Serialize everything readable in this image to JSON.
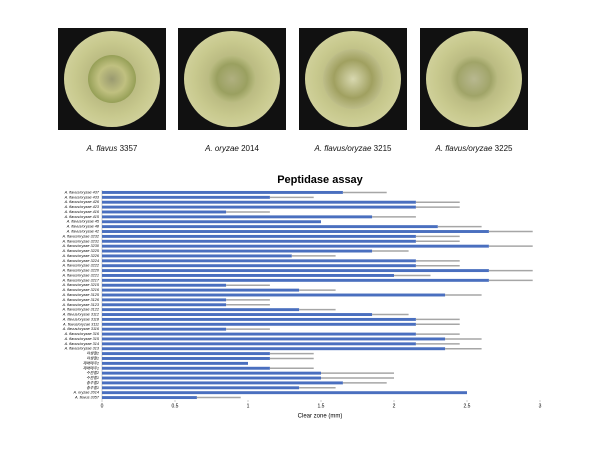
{
  "captions": [
    {
      "species": "A. flavus",
      "strain": "3357"
    },
    {
      "species": "A. oryzae",
      "strain": "2014"
    },
    {
      "species": "A. flavus/oryzae",
      "strain": "3215"
    },
    {
      "species": "A. flavus/oryzae",
      "strain": "3225"
    }
  ],
  "chart_data": {
    "type": "bar",
    "orientation": "horizontal",
    "title": "Peptidase assay",
    "x_label": "Clear zone (mm)",
    "categories": [
      "A. flavus/oryzae 437",
      "A. flavus/oryzae 433",
      "A. flavus/oryzae 426",
      "A. flavus/oryzae 423",
      "A. flavus/oryzae 416",
      "A. flavus/oryzae 415",
      "A. flavus/oryzae 45",
      "A. flavus/oryzae 48",
      "A. flavus/oryzae 42",
      "A. flavus/oryzae 3232",
      "A. flavus/oryzae 3231",
      "A. flavus/oryzae 3230",
      "A. flavus/oryzae 3225",
      "A. flavus/oryzae 3226",
      "A. flavus/oryzae 3224",
      "A. flavus/oryzae 3222",
      "A. flavus/oryzae 3220",
      "A. flavus/oryzae 3221",
      "A. flavus/oryzae 3217",
      "A. flavus/oryzae 3215",
      "A. flavus/oryzae 3216",
      "A. flavus/oryzae 3125",
      "A. flavus/oryzae 3126",
      "A. flavus/oryzae 3123",
      "A. flavus/oryzae 3122",
      "A. flavus/oryzae 3112",
      "A. flavus/oryzae 3118",
      "A. flavus/oryzae 3111",
      "A. flavus/oryzae 3116",
      "A. flavus/oryzae 316",
      "A. flavus/oryzae 315",
      "A. flavus/oryzae 314",
      "A. flavus/oryzae 313",
      "야생철2",
      "야생철1",
      "재래메주2",
      "재래메주1",
      "수원철2",
      "수원철1",
      "충주철2",
      "충주철1",
      "A. oryzae 2014",
      "A. flavus 3357"
    ],
    "values": [
      1.65,
      1.15,
      2.15,
      2.15,
      0.85,
      1.85,
      1.5,
      2.3,
      2.65,
      2.15,
      2.15,
      2.65,
      1.85,
      1.3,
      2.15,
      2.15,
      2.65,
      2.0,
      2.65,
      0.85,
      1.35,
      2.35,
      0.85,
      0.85,
      1.35,
      1.85,
      2.15,
      2.15,
      0.85,
      2.15,
      2.35,
      2.15,
      2.35,
      1.15,
      1.15,
      1.0,
      1.15,
      1.5,
      1.5,
      1.65,
      1.35,
      2.5,
      0.65
    ],
    "errors": [
      0.3,
      0.3,
      0.3,
      0.3,
      0.3,
      0.3,
      0,
      0.3,
      0.3,
      0.3,
      0.3,
      0.3,
      0.25,
      0.3,
      0.3,
      0.3,
      0.3,
      0.25,
      0.3,
      0.3,
      0.25,
      0.25,
      0.3,
      0.3,
      0.25,
      0.25,
      0.3,
      0.3,
      0.3,
      0.3,
      0.25,
      0.3,
      0.25,
      0.3,
      0.3,
      0,
      0.3,
      0.5,
      0.5,
      0.3,
      0.25,
      0,
      0.3
    ],
    "color": "#4a6fbf",
    "error_color": "#a6a6a6",
    "xlim": [
      0,
      3
    ],
    "xticks": [
      0,
      0.5,
      1,
      1.5,
      2,
      2.5,
      3
    ],
    "grid": false
  }
}
